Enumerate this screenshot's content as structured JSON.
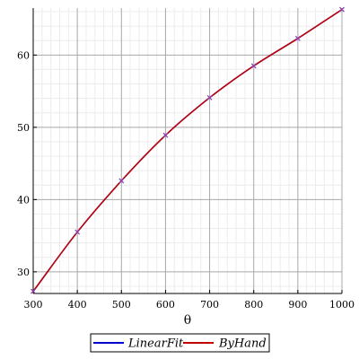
{
  "chart_data": {
    "type": "line",
    "title": "",
    "xlabel": "θ",
    "ylabel": "",
    "xlim": [
      300,
      1000
    ],
    "ylim": [
      27,
      66.5
    ],
    "xticks": [
      300,
      400,
      500,
      600,
      700,
      800,
      900,
      1000
    ],
    "yticks": [
      30,
      40,
      50,
      60
    ],
    "grid": true,
    "minor_grid": true,
    "legend_position": "bottom",
    "series": [
      {
        "name": "LinearFit",
        "color": "#0000cc",
        "style": "line",
        "x": [
          300,
          400,
          500,
          600,
          700,
          800,
          900,
          1000
        ],
        "y": [
          27.3,
          35.5,
          42.6,
          48.9,
          54.1,
          58.5,
          62.3,
          66.3
        ]
      },
      {
        "name": "ByHand",
        "color": "#c00000",
        "style": "line",
        "x": [
          300,
          400,
          500,
          600,
          700,
          800,
          900,
          1000
        ],
        "y": [
          27.3,
          35.5,
          42.6,
          48.9,
          54.1,
          58.5,
          62.3,
          66.3
        ]
      }
    ],
    "points": {
      "color": "#8e44ad",
      "x": [
        300,
        400,
        500,
        600,
        700,
        800,
        900,
        1000
      ],
      "y": [
        27.3,
        35.5,
        42.6,
        48.9,
        54.1,
        58.5,
        62.3,
        66.3
      ]
    }
  }
}
